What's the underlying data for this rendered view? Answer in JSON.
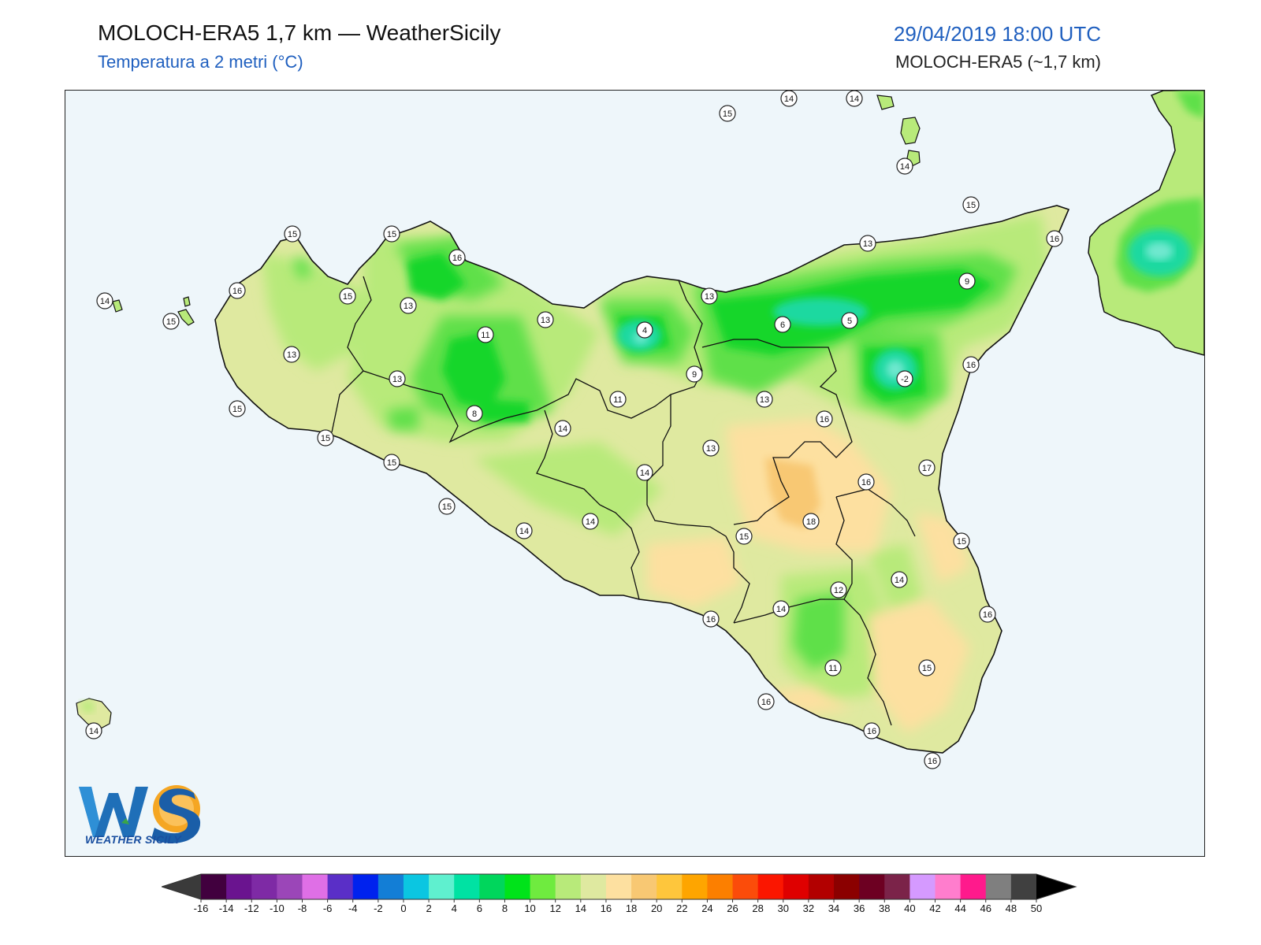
{
  "header": {
    "title": "MOLOCH-ERA5 1,7 km — WeatherSicily",
    "subtitle": "Temperatura a 2 metri (°C)",
    "datetime": "29/04/2019 18:00 UTC",
    "model": "MOLOCH-ERA5 (~1,7 km)"
  },
  "logo": {
    "text": "WEATHER SICILY",
    "letters": "WS"
  },
  "colors": {
    "sea": "#eef6fa",
    "land_base": "#dfe9a0",
    "green_light": "#b8ea7a",
    "green": "#5fe04a",
    "green_dark": "#19d62a",
    "teal": "#1fd9a0",
    "aqua": "#6fe8cf",
    "orange_light": "#fde0a0",
    "orange": "#f8c873",
    "border": "#111111"
  },
  "stations": [
    {
      "value": "15"
    },
    {
      "value": "14"
    },
    {
      "value": "14"
    },
    {
      "value": "14"
    },
    {
      "value": "15"
    },
    {
      "value": "16"
    },
    {
      "value": "15"
    },
    {
      "value": "15"
    },
    {
      "value": "16"
    },
    {
      "value": "13"
    },
    {
      "value": "13"
    },
    {
      "value": "14"
    },
    {
      "value": "15"
    },
    {
      "value": "16"
    },
    {
      "value": "15"
    },
    {
      "value": "13"
    },
    {
      "value": "11"
    },
    {
      "value": "13"
    },
    {
      "value": "4"
    },
    {
      "value": "6"
    },
    {
      "value": "5"
    },
    {
      "value": "9"
    },
    {
      "value": "13"
    },
    {
      "value": "-2"
    },
    {
      "value": "16"
    },
    {
      "value": "13"
    },
    {
      "value": "15"
    },
    {
      "value": "8"
    },
    {
      "value": "11"
    },
    {
      "value": "9"
    },
    {
      "value": "13"
    },
    {
      "value": "16"
    },
    {
      "value": "14"
    },
    {
      "value": "13"
    },
    {
      "value": "14"
    },
    {
      "value": "17"
    },
    {
      "value": "16"
    },
    {
      "value": "15"
    },
    {
      "value": "15"
    },
    {
      "value": "14"
    },
    {
      "value": "18"
    },
    {
      "value": "14"
    },
    {
      "value": "15"
    },
    {
      "value": "15"
    },
    {
      "value": "12"
    },
    {
      "value": "14"
    },
    {
      "value": "15"
    },
    {
      "value": "16"
    },
    {
      "value": "14"
    },
    {
      "value": "16"
    },
    {
      "value": "11"
    },
    {
      "value": "15"
    },
    {
      "value": "16"
    },
    {
      "value": "16"
    },
    {
      "value": "16"
    },
    {
      "value": "14"
    }
  ],
  "colorbar": {
    "ticks": [
      "-16",
      "-14",
      "-12",
      "-10",
      "-8",
      "-6",
      "-4",
      "-2",
      "0",
      "2",
      "4",
      "6",
      "8",
      "10",
      "12",
      "14",
      "16",
      "18",
      "20",
      "22",
      "24",
      "26",
      "28",
      "30",
      "32",
      "34",
      "36",
      "38",
      "40",
      "42",
      "44",
      "46",
      "48",
      "50"
    ],
    "colors": [
      "#41003e",
      "#6a148f",
      "#7e2aa5",
      "#9b46b8",
      "#df6fe6",
      "#5a2fc7",
      "#0022ee",
      "#137ed6",
      "#0bc6e1",
      "#5ff0cf",
      "#00e2a3",
      "#00d65c",
      "#00e31a",
      "#6feb3f",
      "#b8ea7a",
      "#dfe9a0",
      "#fde0a0",
      "#f8c873",
      "#fec63c",
      "#fea500",
      "#fc7f00",
      "#fb4c0a",
      "#fb1600",
      "#df0000",
      "#b20000",
      "#8b0000",
      "#6d0022",
      "#7b2349",
      "#d59aff",
      "#ff7dcd",
      "#ff1a8c",
      "#7f7f7f",
      "#404040"
    ],
    "under_color": "#3a3a3a",
    "over_color": "#000000"
  }
}
